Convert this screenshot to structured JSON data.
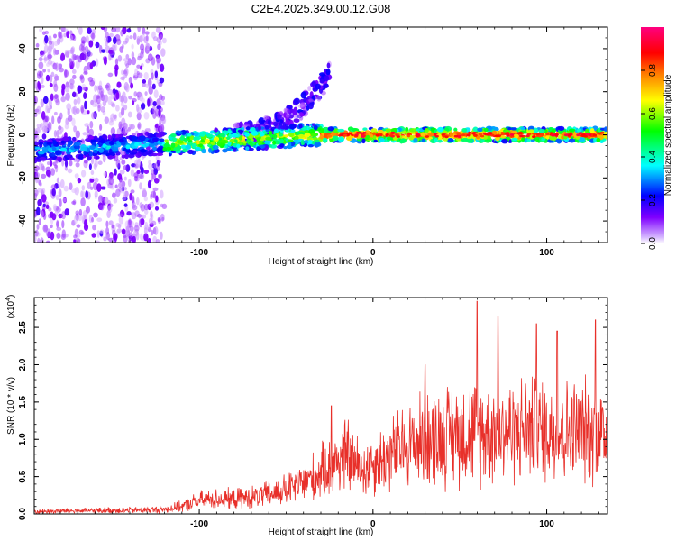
{
  "figure": {
    "title": "C2E4.2025.349.00.12.G08"
  },
  "chart_data": [
    {
      "type": "heatmap",
      "title": "C2E4.2025.349.00.12.G08",
      "xlabel": "Height of straight line (km)",
      "ylabel": "Frequency (Hz)",
      "xlim": [
        -195,
        135
      ],
      "ylim": [
        -50,
        50
      ],
      "xticks": [
        -100,
        0,
        100
      ],
      "xtick_labels": [
        "-100",
        "0",
        "100"
      ],
      "yticks": [
        -40,
        -20,
        0,
        20,
        40
      ],
      "ytick_labels": [
        "-40",
        "-20",
        "0",
        "20",
        "40"
      ],
      "colorbar": {
        "label": "Normalized spectral amplitude",
        "range": [
          0,
          1
        ],
        "ticks": [
          0.0,
          0.2,
          0.4,
          0.6,
          0.8
        ],
        "tick_labels": [
          "0.0",
          "0.2",
          "0.4",
          "0.6",
          "0.8"
        ],
        "colormap": [
          "#ffffff",
          "#8000ff",
          "#0000ff",
          "#00ffff",
          "#00ff00",
          "#ffff00",
          "#ff8000",
          "#ff0000",
          "#ff0080"
        ]
      },
      "features": [
        {
          "description": "scattered low-amplitude noise",
          "x_range": [
            -195,
            -120
          ],
          "y_range": [
            -50,
            50
          ],
          "amplitude": 0.1
        },
        {
          "description": "main band near 0 Hz",
          "x_range": [
            -195,
            135
          ],
          "y_center": 0,
          "amplitude_max": 0.95
        },
        {
          "description": "rising branch",
          "x_range": [
            -80,
            -25
          ],
          "y_range": [
            0,
            28
          ],
          "amplitude": 0.2
        }
      ]
    },
    {
      "type": "line",
      "xlabel": "Height of straight line (km)",
      "ylabel": "SNR (10 * v/v)",
      "y_multiplier_label": "(x10",
      "y_multiplier_exp": "4",
      "xlim": [
        -195,
        135
      ],
      "ylim": [
        0,
        2.9
      ],
      "xticks": [
        -100,
        0,
        100
      ],
      "xtick_labels": [
        "-100",
        "0",
        "100"
      ],
      "yticks": [
        0.0,
        0.5,
        1.0,
        1.5,
        2.0,
        2.5
      ],
      "ytick_labels": [
        "0.0",
        "0.5",
        "1.0",
        "1.5",
        "2.0",
        "2.5"
      ],
      "series": [
        {
          "name": "SNR",
          "color": "#e8302a",
          "x": [
            -195,
            -180,
            -165,
            -150,
            -135,
            -120,
            -110,
            -100,
            -90,
            -80,
            -70,
            -60,
            -50,
            -40,
            -30,
            -25,
            -20,
            -15,
            -10,
            -5,
            0,
            5,
            10,
            20,
            30,
            40,
            50,
            60,
            70,
            80,
            90,
            100,
            110,
            120,
            130,
            135
          ],
          "y": [
            0.03,
            0.04,
            0.04,
            0.05,
            0.05,
            0.06,
            0.1,
            0.18,
            0.2,
            0.2,
            0.22,
            0.26,
            0.32,
            0.42,
            0.55,
            0.62,
            0.72,
            0.8,
            0.65,
            0.6,
            0.68,
            0.72,
            0.8,
            0.92,
            1.0,
            1.05,
            1.1,
            1.1,
            1.12,
            1.12,
            1.15,
            1.12,
            1.1,
            1.12,
            1.1,
            1.05
          ],
          "peaks": [
            {
              "x": -24,
              "y": 1.45
            },
            {
              "x": 30,
              "y": 2.0
            },
            {
              "x": 60,
              "y": 2.85
            },
            {
              "x": 72,
              "y": 2.65
            },
            {
              "x": 94,
              "y": 2.55
            },
            {
              "x": 106,
              "y": 2.45
            },
            {
              "x": 128,
              "y": 2.6
            }
          ],
          "noise_amplitude": 0.55
        }
      ]
    }
  ]
}
